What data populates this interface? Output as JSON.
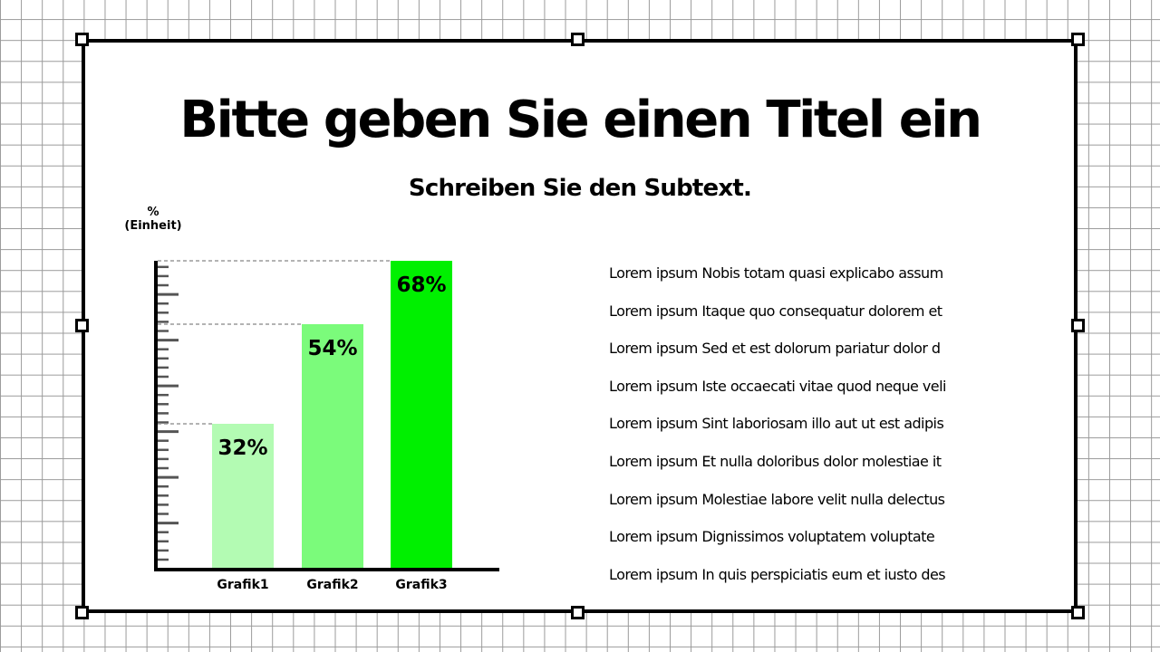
{
  "slide": {
    "title": "Bitte geben Sie einen Titel ein",
    "subtitle": "Schreiben Sie den Subtext."
  },
  "colors": {
    "grid": "#9a9a9a",
    "frame": "#000000",
    "bar_light": "#b3fbb3",
    "bar_mid": "#7bfb7b",
    "bar_dark": "#00f000"
  },
  "chart_data": {
    "type": "bar",
    "unit_label": [
      "%",
      "(Einheit)"
    ],
    "categories": [
      "Grafik1",
      "Grafik2",
      "Grafik3"
    ],
    "values": [
      32,
      54,
      68
    ],
    "data_labels": [
      "32%",
      "54%",
      "68%"
    ],
    "bar_colors": [
      "#b3fbb3",
      "#7bfb7b",
      "#00f000"
    ],
    "ylim": [
      0,
      68
    ],
    "reference_lines": "dashed at each bar top",
    "grid": false
  },
  "text_items": [
    "Lorem ipsum Nobis totam quasi explicabo assum",
    "Lorem ipsum Itaque quo consequatur dolorem et",
    "Lorem ipsum Sed et est dolorum pariatur dolor d",
    "Lorem ipsum Iste occaecati vitae quod neque veli",
    "Lorem ipsum Sint laboriosam illo aut ut est adipis",
    "Lorem ipsum Et nulla doloribus dolor molestiae it",
    "Lorem ipsum Molestiae labore velit nulla delectus",
    "Lorem ipsum Dignissimos voluptatem voluptate",
    "Lorem ipsum In quis perspiciatis eum et iusto des"
  ]
}
